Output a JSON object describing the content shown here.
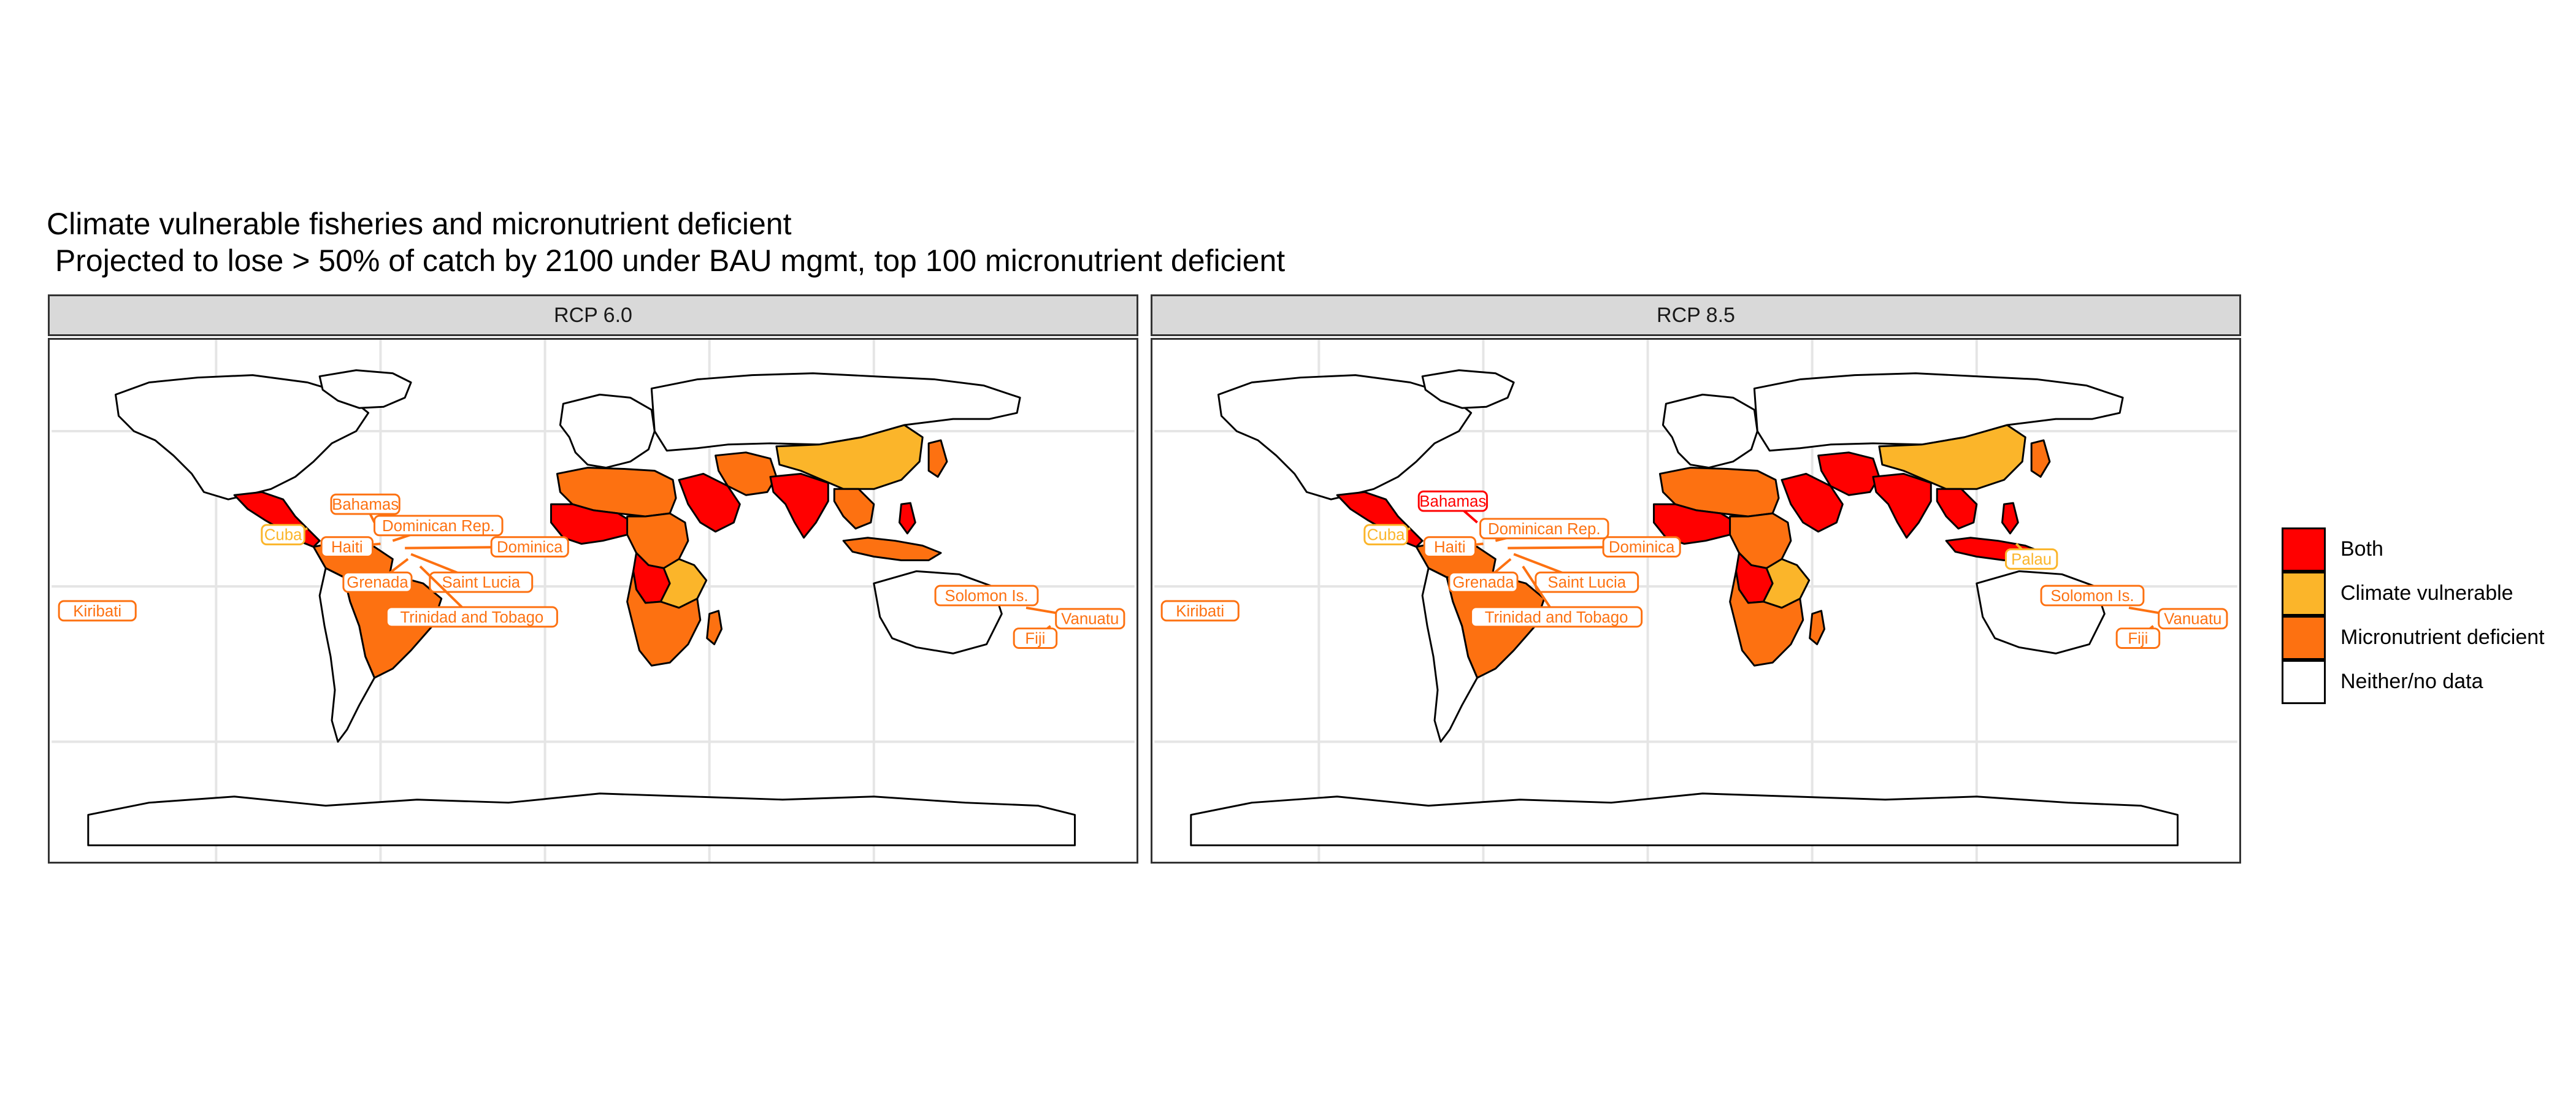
{
  "title": {
    "line1": "Climate vulnerable fisheries and micronutrient deficient",
    "line2": " Projected to lose > 50% of catch by 2100 under BAU mgmt, top 100 micronutrient deficient"
  },
  "colors": {
    "both": "#ff0000",
    "climate_vulnerable": "#fbb52a",
    "micronutrient_deficient": "#fd7111",
    "neither": "#ffffff"
  },
  "legend": [
    {
      "key": "both",
      "label": "Both"
    },
    {
      "key": "climate_vulnerable",
      "label": "Climate vulnerable"
    },
    {
      "key": "micronutrient_deficient",
      "label": "Micronutrient deficient"
    },
    {
      "key": "neither",
      "label": "Neither/no data"
    }
  ],
  "panels": [
    {
      "title": "RCP 6.0",
      "regions": {
        "north_america": "neither",
        "greenland": "neither",
        "central_america": "both",
        "south_america_north": "micronutrient_deficient",
        "south_america_brazil": "micronutrient_deficient",
        "south_america_south": "neither",
        "europe": "neither",
        "russia": "neither",
        "north_africa": "micronutrient_deficient",
        "west_africa": "both",
        "central_africa": "micronutrient_deficient",
        "congo": "both",
        "east_africa": "climate_vulnerable",
        "southern_africa": "micronutrient_deficient",
        "madagascar": "micronutrient_deficient",
        "arabian_peninsula": "both",
        "iran": "micronutrient_deficient",
        "india": "both",
        "china": "climate_vulnerable",
        "southeast_asia": "micronutrient_deficient",
        "indonesia": "micronutrient_deficient",
        "philippines": "both",
        "japan": "micronutrient_deficient",
        "australia": "neither",
        "antarctica": "neither"
      },
      "labels": [
        {
          "name": "Bahamas",
          "category": "micronutrient_deficient"
        },
        {
          "name": "Cuba",
          "category": "climate_vulnerable"
        },
        {
          "name": "Dominican Rep.",
          "category": "micronutrient_deficient"
        },
        {
          "name": "Haiti",
          "category": "micronutrient_deficient"
        },
        {
          "name": "Dominica",
          "category": "micronutrient_deficient"
        },
        {
          "name": "Grenada",
          "category": "micronutrient_deficient"
        },
        {
          "name": "Saint Lucia",
          "category": "micronutrient_deficient"
        },
        {
          "name": "Trinidad and Tobago",
          "category": "micronutrient_deficient"
        },
        {
          "name": "Kiribati",
          "category": "micronutrient_deficient"
        },
        {
          "name": "Solomon Is.",
          "category": "micronutrient_deficient"
        },
        {
          "name": "Vanuatu",
          "category": "micronutrient_deficient"
        },
        {
          "name": "Fiji",
          "category": "micronutrient_deficient"
        }
      ]
    },
    {
      "title": "RCP 8.5",
      "regions": {
        "north_america": "neither",
        "greenland": "neither",
        "central_america": "both",
        "south_america_north": "micronutrient_deficient",
        "south_america_brazil": "micronutrient_deficient",
        "south_america_south": "neither",
        "europe": "neither",
        "russia": "neither",
        "north_africa": "micronutrient_deficient",
        "west_africa": "both",
        "central_africa": "micronutrient_deficient",
        "congo": "both",
        "east_africa": "climate_vulnerable",
        "southern_africa": "micronutrient_deficient",
        "madagascar": "micronutrient_deficient",
        "arabian_peninsula": "both",
        "iran": "both",
        "india": "both",
        "china": "climate_vulnerable",
        "southeast_asia": "both",
        "indonesia": "both",
        "philippines": "both",
        "japan": "micronutrient_deficient",
        "australia": "neither",
        "antarctica": "neither"
      },
      "labels": [
        {
          "name": "Bahamas",
          "category": "both"
        },
        {
          "name": "Cuba",
          "category": "climate_vulnerable"
        },
        {
          "name": "Dominican Rep.",
          "category": "micronutrient_deficient"
        },
        {
          "name": "Haiti",
          "category": "micronutrient_deficient"
        },
        {
          "name": "Dominica",
          "category": "micronutrient_deficient"
        },
        {
          "name": "Grenada",
          "category": "micronutrient_deficient"
        },
        {
          "name": "Saint Lucia",
          "category": "micronutrient_deficient"
        },
        {
          "name": "Trinidad and Tobago",
          "category": "micronutrient_deficient"
        },
        {
          "name": "Kiribati",
          "category": "micronutrient_deficient"
        },
        {
          "name": "Palau",
          "category": "climate_vulnerable"
        },
        {
          "name": "Solomon Is.",
          "category": "micronutrient_deficient"
        },
        {
          "name": "Vanuatu",
          "category": "micronutrient_deficient"
        },
        {
          "name": "Fiji",
          "category": "micronutrient_deficient"
        }
      ]
    }
  ]
}
